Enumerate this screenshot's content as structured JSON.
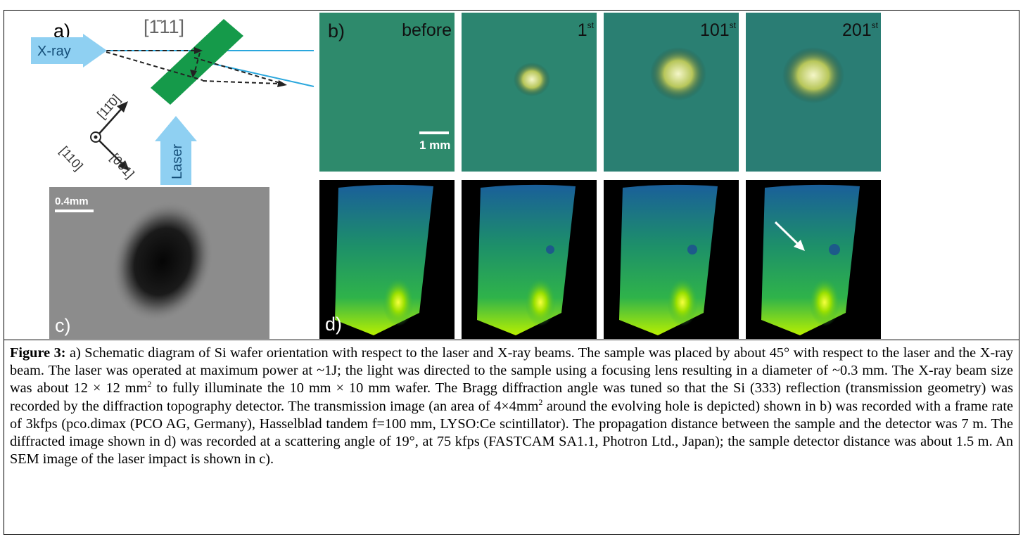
{
  "panel_a": {
    "label": "a)",
    "direction": "[1̄11]",
    "xray": "X-ray",
    "laser": "Laser",
    "axis_1": "[11̄0]",
    "axis_2": "[110]",
    "axis_3": "[001]"
  },
  "panel_b": {
    "label": "b)",
    "frames": [
      {
        "text": "before"
      },
      {
        "text": "1",
        "sup": "st"
      },
      {
        "text": "101",
        "sup": "st"
      },
      {
        "text": "201",
        "sup": "st"
      }
    ],
    "scale_bar": "1 mm"
  },
  "panel_c": {
    "label": "c)",
    "scale_bar": "0.4mm"
  },
  "panel_d": {
    "label": "d)"
  },
  "caption": {
    "label": "Figure 3:",
    "text_1": "a) Schematic diagram of Si wafer orientation with respect to the laser and X-ray beams. The sample was placed by about 45° with respect to the laser and the X-ray beam. The laser was operated at maximum power at ~1J; the light was directed to the sample using a focusing lens resulting in a diameter of ~0.3 mm. The X-ray beam size was about 12 × 12 mm",
    "sup_1": "2",
    "text_2": "to fully illuminate the 10 mm × 10 mm wafer. The Bragg diffraction angle was tuned so that the Si (333) reflection (transmission geometry) was recorded by the diffraction topography detector. The transmission image (an area of 4×4mm",
    "sup_2": "2",
    "text_3": "around the evolving hole is depicted) shown in b) was recorded with a frame rate of 3kfps (pco.dimax (PCO AG, Germany), Hasselblad tandem f=100 mm, LYSO:Ce scintillator). The propagation distance between the sample and the detector was 7 m. The diffracted image shown in d) was recorded at a scattering angle of 19°, at 75 kfps (FASTCAM SA1.1, Photron Ltd., Japan); the sample detector distance was about 1.5 m. An SEM image of the laser impact is shown in c)."
  }
}
